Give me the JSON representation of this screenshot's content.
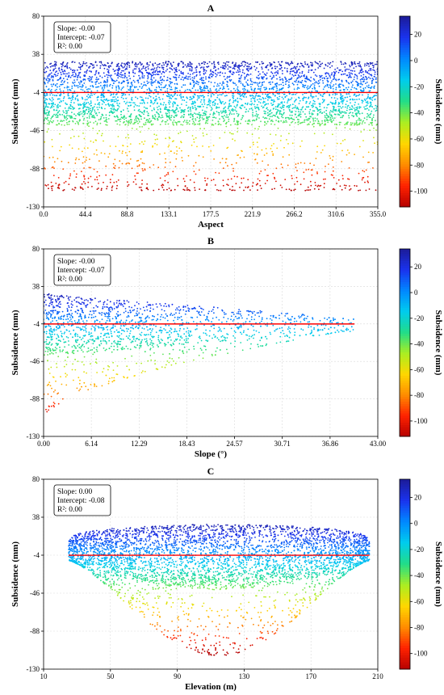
{
  "chart_data": [
    {
      "type": "scatter",
      "title": "A",
      "xlabel": "Aspect",
      "ylabel": "Subsidence (mm)",
      "colorbar_label": "Subsidence (mm)",
      "xlim": [
        0,
        355
      ],
      "ylim": [
        -130,
        80
      ],
      "xticks": [
        "0.0",
        "44.4",
        "88.8",
        "133.1",
        "177.5",
        "221.9",
        "266.2",
        "310.6",
        "355.0"
      ],
      "yticks": [
        "-130",
        "-88",
        "-46",
        "-4",
        "38",
        "80"
      ],
      "colorbar_ticks": [
        "20",
        "0",
        "-20",
        "-40",
        "-60",
        "-80",
        "-100"
      ],
      "colorbar_range": [
        -112,
        34
      ],
      "colormap": [
        "#b40000",
        "#ff2200",
        "#ff8c00",
        "#ffd700",
        "#aaee22",
        "#22dd88",
        "#00ccee",
        "#0088ff",
        "#1a33ee",
        "#1c1c99"
      ],
      "regression": {
        "slope": -0.0,
        "intercept": -0.07,
        "color": "#ff0000"
      },
      "stats": [
        "Slope: -0.00",
        "Intercept: -0.07",
        "R²: 0.00"
      ],
      "point_cloud": {
        "x_range": [
          0,
          355
        ],
        "y_top": 30,
        "y_dense_bottom": -40,
        "y_min": -112,
        "shape": "uniform"
      }
    },
    {
      "type": "scatter",
      "title": "B",
      "xlabel": "Slope (°)",
      "ylabel": "Subsidence (mm)",
      "colorbar_label": "Subsidence (mm)",
      "xlim": [
        0,
        43
      ],
      "ylim": [
        -130,
        80
      ],
      "xticks": [
        "0.00",
        "6.14",
        "12.29",
        "18.43",
        "24.57",
        "30.71",
        "36.86",
        "43.00"
      ],
      "yticks": [
        "-130",
        "-88",
        "-46",
        "-4",
        "38",
        "80"
      ],
      "colorbar_ticks": [
        "20",
        "0",
        "-20",
        "-40",
        "-60",
        "-80",
        "-100"
      ],
      "colorbar_range": [
        -112,
        34
      ],
      "colormap": [
        "#b40000",
        "#ff2200",
        "#ff8c00",
        "#ffd700",
        "#aaee22",
        "#22dd88",
        "#00ccee",
        "#0088ff",
        "#1a33ee",
        "#1c1c99"
      ],
      "regression": {
        "slope": -0.0,
        "intercept": -0.07,
        "color": "#ff0000"
      },
      "stats": [
        "Slope: -0.00",
        "Intercept: -0.07",
        "R²: 0.00"
      ],
      "point_cloud": {
        "x_range": [
          0,
          40
        ],
        "y_top": 30,
        "y_dense_bottom": -40,
        "y_min": -110,
        "shape": "tapering"
      }
    },
    {
      "type": "scatter",
      "title": "C",
      "xlabel": "Elevation (m)",
      "ylabel": "Subsidence (mm)",
      "colorbar_label": "Subsidence (mm)",
      "xlim": [
        10,
        210
      ],
      "ylim": [
        -130,
        80
      ],
      "xticks": [
        "10",
        "50",
        "90",
        "130",
        "170",
        "210"
      ],
      "yticks": [
        "-130",
        "-88",
        "-46",
        "-4",
        "38",
        "80"
      ],
      "colorbar_ticks": [
        "20",
        "0",
        "-20",
        "-40",
        "-60",
        "-80",
        "-100"
      ],
      "colorbar_range": [
        -112,
        34
      ],
      "colormap": [
        "#b40000",
        "#ff2200",
        "#ff8c00",
        "#ffd700",
        "#aaee22",
        "#22dd88",
        "#00ccee",
        "#0088ff",
        "#1a33ee",
        "#1c1c99"
      ],
      "regression": {
        "slope": 0.0,
        "intercept": -0.08,
        "color": "#ff0000"
      },
      "stats": [
        "Slope: 0.00",
        "Intercept: -0.08",
        "R²: 0.00"
      ],
      "point_cloud": {
        "x_range": [
          25,
          205
        ],
        "y_top": 30,
        "y_dense_bottom": -40,
        "y_min": -115,
        "shape": "bell"
      }
    }
  ]
}
